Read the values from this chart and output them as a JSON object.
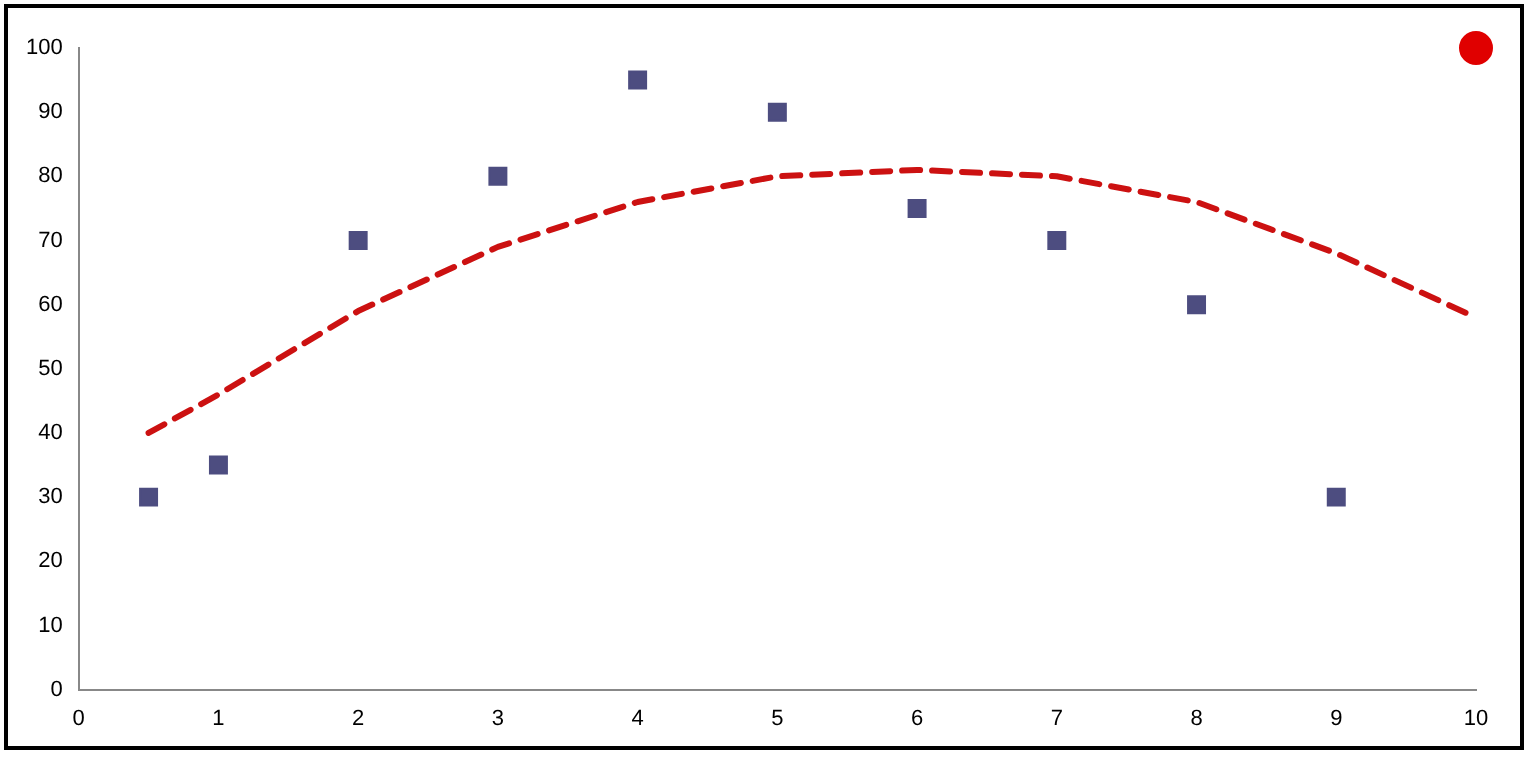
{
  "chart_data": {
    "type": "scatter",
    "xlim": [
      0,
      10
    ],
    "xticks": [
      0,
      1,
      2,
      3,
      4,
      5,
      6,
      7,
      8,
      9,
      10
    ],
    "ylim": [
      0,
      100
    ],
    "yticks": [
      0,
      10,
      20,
      30,
      40,
      50,
      60,
      70,
      80,
      90,
      100
    ],
    "series": [
      {
        "type": "scatter",
        "color": "#4d4d80",
        "marker": "square",
        "x": [
          0.5,
          1,
          2,
          3,
          4,
          5,
          6,
          7,
          8,
          9
        ],
        "values": [
          30,
          35,
          70,
          80,
          95,
          90,
          75,
          70,
          60,
          30
        ]
      },
      {
        "type": "scatter",
        "color": "#e00000",
        "marker": "circle",
        "x": [
          10
        ],
        "values": [
          100
        ]
      },
      {
        "type": "line",
        "color": "#cc1111",
        "marker": "none",
        "line_style": "dashed",
        "x": [
          0.5,
          1,
          2,
          3,
          4,
          5,
          6,
          7,
          8,
          9,
          10
        ],
        "values": [
          40,
          46,
          59,
          69,
          76,
          80,
          81,
          80,
          76,
          68,
          58
        ]
      }
    ]
  }
}
